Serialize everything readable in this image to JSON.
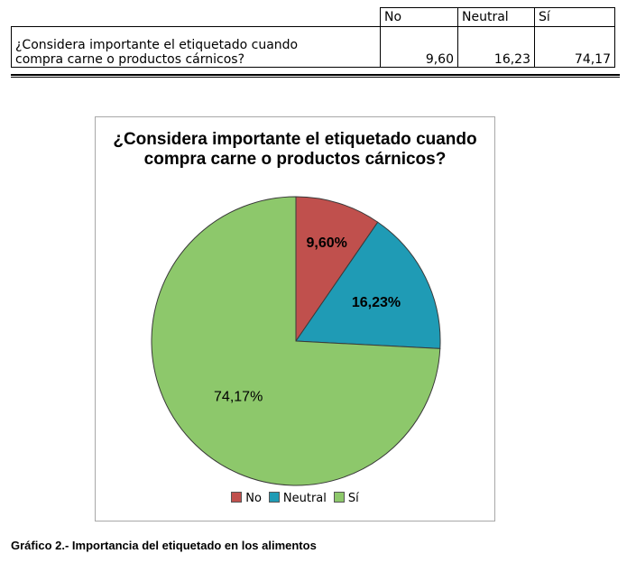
{
  "table": {
    "headers": [
      "No",
      "Neutral",
      "Sí"
    ],
    "question_lines": [
      "¿Considera importante el etiquetado cuando",
      "compra carne o productos cárnicos?"
    ],
    "values": [
      "9,60",
      "16,23",
      "74,17"
    ]
  },
  "chart_data": {
    "type": "pie",
    "title_lines": [
      "¿Considera importante el etiquetado cuando",
      "compra carne o productos cárnicos?"
    ],
    "categories": [
      "No",
      "Neutral",
      "Sí"
    ],
    "values": [
      9.6,
      16.23,
      74.17
    ],
    "data_labels": [
      "9,60%",
      "16,23%",
      "74,17%"
    ],
    "colors": [
      "#c0504d",
      "#1f9bb5",
      "#8dc86b"
    ],
    "legend_position": "bottom"
  },
  "caption": "Gráfico 2.- Importancia del etiquetado en los alimentos"
}
